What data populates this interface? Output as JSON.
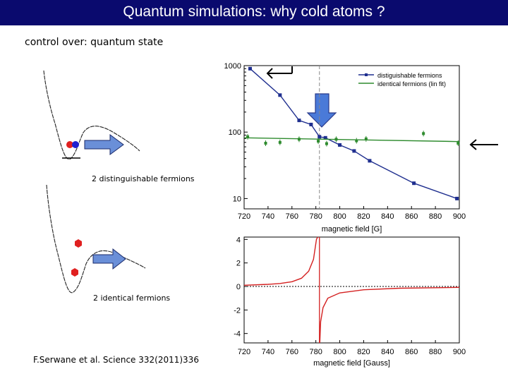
{
  "slide": {
    "title": "Quantum simulations: why cold atoms ?",
    "subtitle": "control over: quantum state",
    "caption_distinguishable": "2 distinguishable fermions",
    "caption_identical": "2 identical fermions",
    "citation": "F.Serwane et al. Science 332(2011)336"
  },
  "colors": {
    "title_bar": "#0a0a6e",
    "distinguishable_series": "#1f2f8f",
    "identical_series": "#2e8b2e",
    "dispersion_curve": "#d42020",
    "arrow_fill": "#6a8fd8",
    "atom_red": "#e02020",
    "atom_blue": "#2020d0"
  },
  "chart_data": [
    {
      "type": "line",
      "xlabel": "magnetic field [G]",
      "ylabel": "",
      "x_ticks": [
        720,
        740,
        760,
        780,
        800,
        820,
        840,
        860,
        880,
        900
      ],
      "y_ticks": [
        10,
        100,
        1000
      ],
      "yscale": "log",
      "xlim": [
        720,
        900
      ],
      "ylim": [
        7,
        1000
      ],
      "legend_position": "top-right",
      "series": [
        {
          "name": "distiguishable fermions",
          "style": "line-markers",
          "points": [
            [
              725,
              900
            ],
            [
              750,
              360
            ],
            [
              766,
              150
            ],
            [
              776,
              130
            ],
            [
              783,
              85
            ],
            [
              788,
              82
            ],
            [
              800,
              64
            ],
            [
              812,
              52
            ],
            [
              825,
              37
            ],
            [
              862,
              17
            ],
            [
              898,
              10
            ]
          ]
        },
        {
          "name": "identical fermions (lin fit)",
          "style": "fit-line",
          "points": [
            [
              720,
              82
            ],
            [
              900,
              72
            ]
          ],
          "scatter": [
            [
              723,
              85
            ],
            [
              738,
              68
            ],
            [
              750,
              70
            ],
            [
              766,
              78
            ],
            [
              782,
              73
            ],
            [
              789,
              67
            ],
            [
              797,
              78
            ],
            [
              814,
              74
            ],
            [
              822,
              79
            ],
            [
              870,
              95
            ],
            [
              899,
              68
            ]
          ]
        }
      ],
      "reference_x": 783
    },
    {
      "type": "line",
      "xlabel": "magnetic field [Gauss]",
      "ylabel": "",
      "x_ticks": [
        720,
        740,
        760,
        780,
        800,
        820,
        840,
        860,
        880,
        900
      ],
      "y_ticks": [
        -4,
        -2,
        0,
        2,
        4
      ],
      "xlim": [
        720,
        900
      ],
      "ylim": [
        -4.8,
        4.2
      ],
      "series": [
        {
          "name": "",
          "style": "line",
          "resonance_x": 783,
          "points_left": [
            [
              720,
              0.1
            ],
            [
              740,
              0.18
            ],
            [
              750,
              0.25
            ],
            [
              760,
              0.4
            ],
            [
              768,
              0.7
            ],
            [
              774,
              1.3
            ],
            [
              778,
              2.3
            ],
            [
              780.5,
              4.0
            ],
            [
              781.5,
              4.2
            ]
          ],
          "points_right": [
            [
              783.3,
              -4.8
            ],
            [
              784,
              -3.0
            ],
            [
              786,
              -1.8
            ],
            [
              790,
              -1.0
            ],
            [
              800,
              -0.55
            ],
            [
              820,
              -0.28
            ],
            [
              850,
              -0.15
            ],
            [
              900,
              -0.08
            ]
          ]
        }
      ]
    }
  ]
}
